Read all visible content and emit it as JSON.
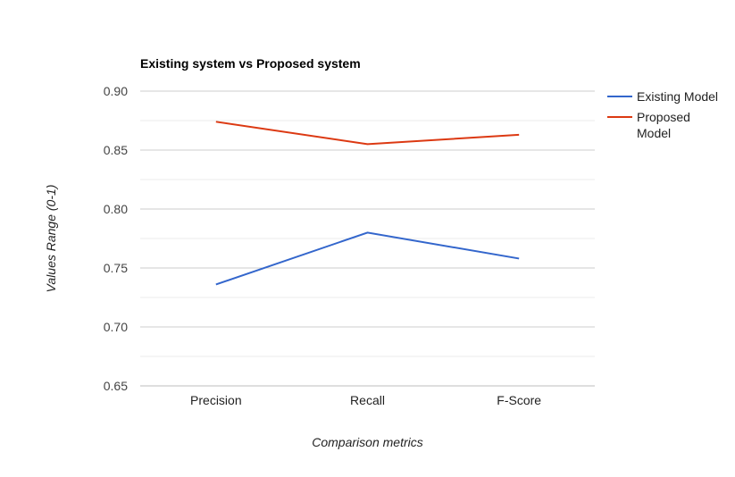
{
  "chart_data": {
    "type": "line",
    "title": "Existing system vs Proposed system",
    "xlabel": "Comparison metrics",
    "ylabel": "Values Range (0-1)",
    "categories": [
      "Precision",
      "Recall",
      "F-Score"
    ],
    "ylim": [
      0.65,
      0.9
    ],
    "yticks": [
      "0.90",
      "0.85",
      "0.80",
      "0.75",
      "0.70",
      "0.65"
    ],
    "grid": true,
    "legend_position": "right",
    "series": [
      {
        "name": "Existing Model",
        "color": "#3366cc",
        "values": [
          0.736,
          0.78,
          0.758
        ]
      },
      {
        "name": "Proposed Model",
        "color": "#dc3912",
        "values": [
          0.874,
          0.855,
          0.863
        ]
      }
    ]
  }
}
